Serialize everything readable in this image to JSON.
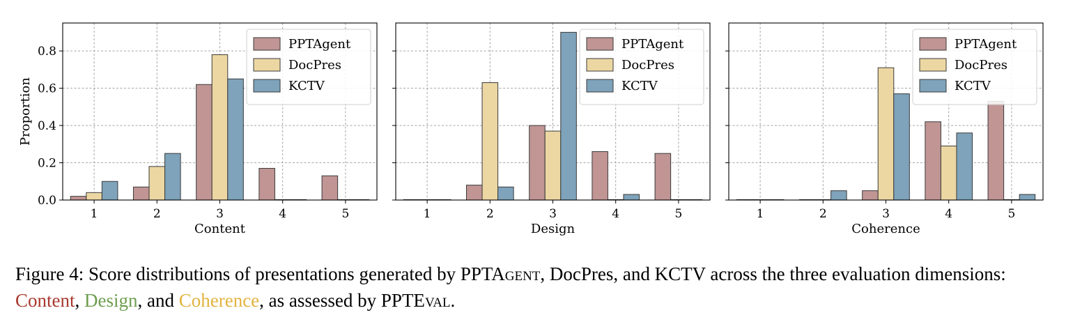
{
  "chart_data": [
    {
      "type": "bar",
      "categories": [
        "1",
        "2",
        "3",
        "4",
        "5"
      ],
      "xlabel": "Content",
      "ylabel": "Proportion",
      "ylim": [
        0,
        0.95
      ],
      "yticks": [
        "0.0",
        "0.2",
        "0.4",
        "0.6",
        "0.8"
      ],
      "grid": true,
      "legend_position": "top-right",
      "series": [
        {
          "name": "PPTAgent",
          "values": [
            0.02,
            0.07,
            0.62,
            0.17,
            0.13
          ]
        },
        {
          "name": "DocPres",
          "values": [
            0.04,
            0.18,
            0.78,
            0.0,
            0.0
          ]
        },
        {
          "name": "KCTV",
          "values": [
            0.1,
            0.25,
            0.65,
            0.0,
            0.0
          ]
        }
      ]
    },
    {
      "type": "bar",
      "categories": [
        "1",
        "2",
        "3",
        "4",
        "5"
      ],
      "xlabel": "Design",
      "ylabel": "",
      "ylim": [
        0,
        0.95
      ],
      "grid": true,
      "legend_position": "top-right",
      "series": [
        {
          "name": "PPTAgent",
          "values": [
            0.0,
            0.08,
            0.4,
            0.26,
            0.25
          ]
        },
        {
          "name": "DocPres",
          "values": [
            0.0,
            0.63,
            0.37,
            0.0,
            0.0
          ]
        },
        {
          "name": "KCTV",
          "values": [
            0.0,
            0.07,
            0.9,
            0.03,
            0.0
          ]
        }
      ]
    },
    {
      "type": "bar",
      "categories": [
        "1",
        "2",
        "3",
        "4",
        "5"
      ],
      "xlabel": "Coherence",
      "ylabel": "",
      "ylim": [
        0,
        0.95
      ],
      "grid": true,
      "legend_position": "top-right",
      "series": [
        {
          "name": "PPTAgent",
          "values": [
            0.0,
            0.0,
            0.05,
            0.42,
            0.53
          ]
        },
        {
          "name": "DocPres",
          "values": [
            0.0,
            0.0,
            0.71,
            0.29,
            0.0
          ]
        },
        {
          "name": "KCTV",
          "values": [
            0.0,
            0.05,
            0.57,
            0.36,
            0.03
          ]
        }
      ]
    }
  ],
  "colors": {
    "PPTAgent": "#c09594",
    "DocPres": "#ecd7a3",
    "KCTV": "#7ea3ba",
    "edge": "#3a3a3a",
    "grid": "#9a9a9a",
    "content": "#a8392f",
    "design": "#6e9d4f",
    "coherence": "#e2b33f"
  },
  "caption": {
    "label": "Figure 4:",
    "part1": " Score distributions of presentations generated by ",
    "pptagent_head": "PPTA",
    "pptagent_tail": "gent",
    "part2": ", DocPres, and KCTV across the three evaluation dimensions: ",
    "content": "Content",
    "sep1": ", ",
    "design": "Design",
    "sep2": ", and ",
    "coherence": "Coherence",
    "part3": ", as assessed by ",
    "ppteval_head": "PPTE",
    "ppteval_tail": "val",
    "end": "."
  }
}
